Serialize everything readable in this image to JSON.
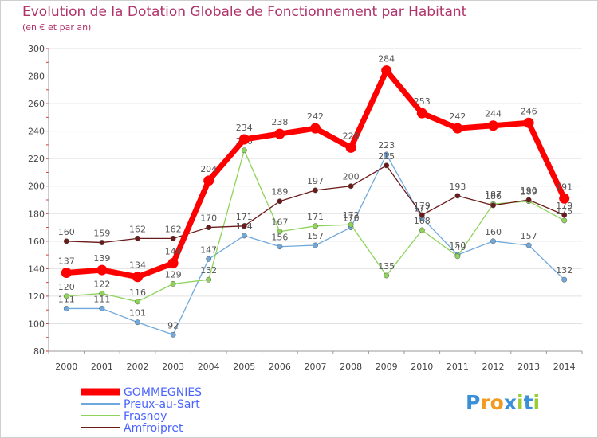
{
  "chart_data": {
    "type": "line",
    "title": "Evolution de la Dotation Globale de Fonctionnement par Habitant",
    "subtitle": "(en € et par an)",
    "xlabel": "",
    "ylabel": "",
    "ylim": [
      80,
      300
    ],
    "yticks": [
      80,
      100,
      120,
      140,
      160,
      180,
      200,
      220,
      240,
      260,
      280,
      300
    ],
    "categories": [
      "2000",
      "2001",
      "2002",
      "2003",
      "2004",
      "2005",
      "2006",
      "2007",
      "2008",
      "2009",
      "2010",
      "2011",
      "2012",
      "2013",
      "2014"
    ],
    "grid": "horizontal",
    "legend_position": "bottom-left",
    "series": [
      {
        "name": "GOMMEGNIES",
        "color": "#ff0000",
        "emphasis": true,
        "values": [
          137,
          139,
          134,
          144,
          204,
          234,
          238,
          242,
          228,
          284,
          253,
          242,
          244,
          246,
          191
        ]
      },
      {
        "name": "Preux-au-Sart",
        "color": "#6fa8dc",
        "values": [
          111,
          111,
          101,
          92,
          147,
          164,
          156,
          157,
          170,
          223,
          177,
          150,
          160,
          157,
          132
        ]
      },
      {
        "name": "Frasnoy",
        "color": "#8fd35a",
        "values": [
          120,
          122,
          116,
          129,
          132,
          226,
          167,
          171,
          172,
          135,
          168,
          149,
          187,
          189,
          175
        ]
      },
      {
        "name": "Amfroipret",
        "color": "#6b1a1a",
        "values": [
          160,
          159,
          162,
          162,
          170,
          171,
          189,
          197,
          200,
          215,
          179,
          193,
          186,
          190,
          179
        ]
      }
    ]
  },
  "brand": {
    "label": "Proxiti",
    "letters": [
      "P",
      "r",
      "o",
      "x",
      "i",
      "t",
      "i"
    ],
    "colors": [
      "#3a8fd9",
      "#f29a1f",
      "#f29a1f",
      "#3a8fd9",
      "#9acd32",
      "#3a8fd9",
      "#9acd32"
    ]
  }
}
